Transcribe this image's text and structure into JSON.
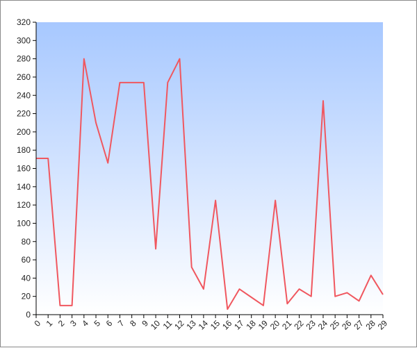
{
  "chart_data": {
    "type": "line",
    "title": "",
    "xlabel": "",
    "ylabel": "",
    "x": [
      0,
      1,
      2,
      3,
      4,
      5,
      6,
      7,
      8,
      9,
      10,
      11,
      12,
      13,
      14,
      15,
      16,
      17,
      18,
      19,
      20,
      21,
      22,
      23,
      24,
      25,
      26,
      27,
      28,
      29
    ],
    "series": [
      {
        "values": [
          171,
          171,
          10,
          10,
          280,
          210,
          166,
          254,
          254,
          254,
          72,
          254,
          280,
          52,
          28,
          125,
          6,
          28,
          19,
          10,
          125,
          12,
          28,
          20,
          234,
          20,
          24,
          15,
          43,
          22
        ]
      }
    ],
    "ylim": [
      0,
      320
    ],
    "yticks": [
      0,
      20,
      40,
      60,
      80,
      100,
      120,
      140,
      160,
      180,
      200,
      220,
      240,
      260,
      280,
      300,
      320
    ],
    "grid": false,
    "legend": "none",
    "colors": {
      "line": "#f0575f",
      "background_top": "#a7c8ff",
      "background_bottom": "#ffffff",
      "axis": "#000000"
    }
  }
}
